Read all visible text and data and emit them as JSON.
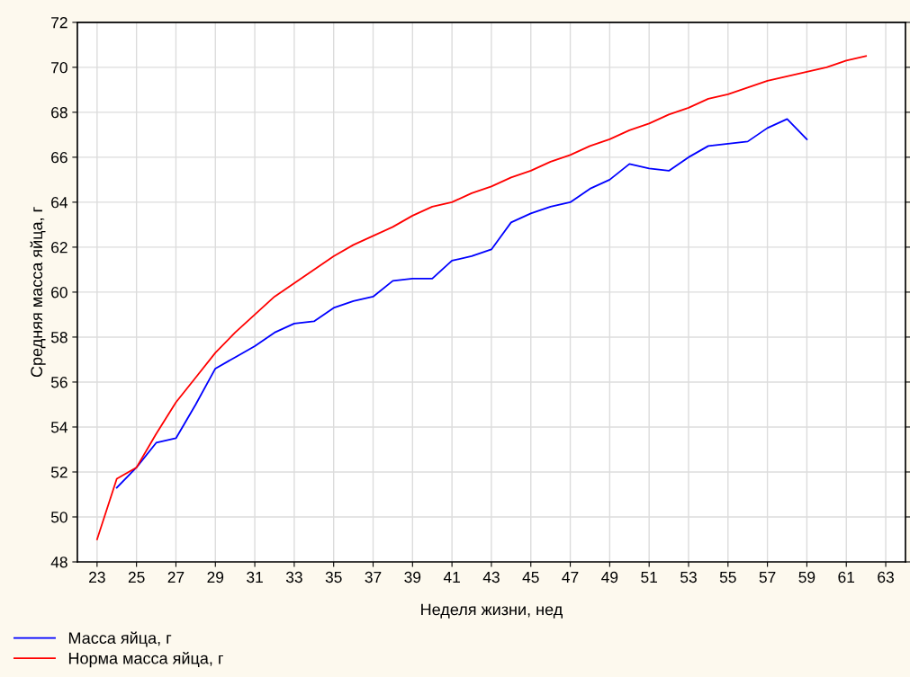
{
  "chart_data": {
    "type": "line",
    "xlabel": "Неделя жизни, нед",
    "ylabel": "Средняя масса яйца, г",
    "xlim": [
      22,
      64
    ],
    "xticks": [
      23,
      25,
      27,
      29,
      31,
      33,
      35,
      37,
      39,
      41,
      43,
      45,
      47,
      49,
      51,
      53,
      55,
      57,
      59,
      61,
      63
    ],
    "ylim": [
      48,
      72
    ],
    "yticks": [
      48,
      50,
      52,
      54,
      56,
      58,
      60,
      62,
      64,
      66,
      68,
      70,
      72
    ],
    "grid": true,
    "legend": "bottom left",
    "marker": "none",
    "line_style": "solid",
    "series": [
      {
        "name": "Масса яйца, г",
        "color": "#0000ff",
        "x": [
          24,
          25,
          26,
          27,
          28,
          29,
          30,
          31,
          32,
          33,
          34,
          35,
          36,
          37,
          38,
          39,
          40,
          41,
          42,
          43,
          44,
          45,
          46,
          47,
          48,
          49,
          50,
          51,
          52,
          53,
          54,
          55,
          56,
          57,
          58,
          59
        ],
        "values": [
          51.3,
          52.2,
          53.3,
          53.5,
          55.0,
          56.6,
          57.1,
          57.6,
          58.2,
          58.6,
          58.7,
          59.3,
          59.6,
          59.8,
          60.5,
          60.6,
          60.6,
          61.4,
          61.6,
          61.9,
          63.1,
          63.5,
          63.8,
          64.0,
          64.6,
          65.0,
          65.7,
          65.5,
          65.4,
          66.0,
          66.5,
          66.6,
          66.7,
          67.3,
          67.7,
          66.8
        ]
      },
      {
        "name": "Норма масса яйца, г",
        "color": "#ff0000",
        "x": [
          23,
          24,
          25,
          26,
          27,
          28,
          29,
          30,
          31,
          32,
          33,
          34,
          35,
          36,
          37,
          38,
          39,
          40,
          41,
          42,
          43,
          44,
          45,
          46,
          47,
          48,
          49,
          50,
          51,
          52,
          53,
          54,
          55,
          56,
          57,
          58,
          59,
          60,
          61,
          62
        ],
        "values": [
          49.0,
          51.7,
          52.2,
          53.7,
          55.1,
          56.2,
          57.3,
          58.2,
          59.0,
          59.8,
          60.4,
          61.0,
          61.6,
          62.1,
          62.5,
          62.9,
          63.4,
          63.8,
          64.0,
          64.4,
          64.7,
          65.1,
          65.4,
          65.8,
          66.1,
          66.5,
          66.8,
          67.2,
          67.5,
          67.9,
          68.2,
          68.6,
          68.8,
          69.1,
          69.4,
          69.6,
          69.8,
          70.0,
          70.3,
          70.5
        ]
      }
    ]
  }
}
